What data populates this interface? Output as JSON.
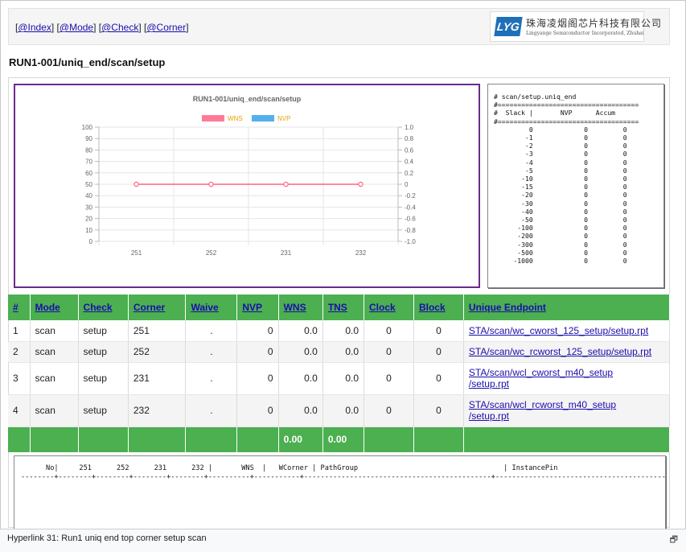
{
  "nav": {
    "links": [
      "@Index",
      "@Mode",
      "@Check",
      "@Corner"
    ]
  },
  "logo": {
    "mark": "LYG",
    "cn_name": "珠海凌烟阁芯片科技有限公司",
    "en_name": "Lingyange Semiconductor Incorporated, Zhuhai"
  },
  "page": {
    "title": "RUN1-001/uniq_end/scan/setup"
  },
  "colors": {
    "wns": "#ff6384",
    "nvp": "#36a2eb",
    "header_green": "#4caf50",
    "chart_border": "#6b2a8a"
  },
  "chart_data": {
    "type": "line",
    "title": "RUN1-001/uniq_end/scan/setup",
    "categories": [
      "251",
      "252",
      "231",
      "232"
    ],
    "series": [
      {
        "name": "WNS",
        "values": [
          0,
          0,
          0,
          0
        ],
        "axis": "right"
      },
      {
        "name": "NVP",
        "values": [
          0,
          0,
          0,
          0
        ],
        "axis": "left"
      }
    ],
    "left_axis": {
      "min": 0,
      "max": 100,
      "ticks": [
        "100",
        "90",
        "80",
        "70",
        "60",
        "50",
        "40",
        "30",
        "20",
        "10",
        "0"
      ]
    },
    "right_axis": {
      "min": -1.0,
      "max": 1.0,
      "ticks": [
        "1.0",
        "0.8",
        "0.6",
        "0.4",
        "0.2",
        "0",
        "-0.2",
        "-0.4",
        "-0.6",
        "-0.8",
        "-1.0"
      ]
    },
    "legend": "top",
    "grid": true
  },
  "slack_report": {
    "title": "# scan/setup.uniq_end",
    "header": "#  Slack |       NVP      Accum",
    "rows": [
      [
        "0",
        "0",
        "0"
      ],
      [
        "-1",
        "0",
        "0"
      ],
      [
        "-2",
        "0",
        "0"
      ],
      [
        "-3",
        "0",
        "0"
      ],
      [
        "-4",
        "0",
        "0"
      ],
      [
        "-5",
        "0",
        "0"
      ],
      [
        "-10",
        "0",
        "0"
      ],
      [
        "-15",
        "0",
        "0"
      ],
      [
        "-20",
        "0",
        "0"
      ],
      [
        "-30",
        "0",
        "0"
      ],
      [
        "-40",
        "0",
        "0"
      ],
      [
        "-50",
        "0",
        "0"
      ],
      [
        "-100",
        "0",
        "0"
      ],
      [
        "-200",
        "0",
        "0"
      ],
      [
        "-300",
        "0",
        "0"
      ],
      [
        "-500",
        "0",
        "0"
      ],
      [
        "-1000",
        "0",
        "0"
      ]
    ]
  },
  "table": {
    "headers": [
      "#",
      "Mode",
      "Check",
      "Corner",
      "Waive",
      "NVP",
      "WNS",
      "TNS",
      "Clock",
      "Block",
      "Unique Endpoint"
    ],
    "rows": [
      {
        "idx": "1",
        "mode": "scan",
        "check": "setup",
        "corner": "251",
        "waive": ".",
        "nvp": "0",
        "wns": "0.0",
        "tns": "0.0",
        "clock": "0",
        "block": "0",
        "endpoint": [
          "STA/scan/wc_cworst_125_setup/setup.rpt"
        ]
      },
      {
        "idx": "2",
        "mode": "scan",
        "check": "setup",
        "corner": "252",
        "waive": ".",
        "nvp": "0",
        "wns": "0.0",
        "tns": "0.0",
        "clock": "0",
        "block": "0",
        "endpoint": [
          "STA/scan/wc_rcworst_125_setup/setup.rpt"
        ]
      },
      {
        "idx": "3",
        "mode": "scan",
        "check": "setup",
        "corner": "231",
        "waive": ".",
        "nvp": "0",
        "wns": "0.0",
        "tns": "0.0",
        "clock": "0",
        "block": "0",
        "endpoint": [
          "STA/scan/wcl_cworst_m40_setup",
          "/setup.rpt"
        ]
      },
      {
        "idx": "4",
        "mode": "scan",
        "check": "setup",
        "corner": "232",
        "waive": ".",
        "nvp": "0",
        "wns": "0.0",
        "tns": "0.0",
        "clock": "0",
        "block": "0",
        "endpoint": [
          "STA/scan/wcl_rcworst_m40_setup",
          "/setup.rpt"
        ]
      }
    ],
    "footer": {
      "wns": "0.00",
      "tns": "0.00"
    }
  },
  "path_report": {
    "header": "      No|     251      252      231      232 |       WNS  |   WCorner | PathGroup                                   | InstancePin",
    "rule": "--------+--------+--------+--------+--------+----------+-----------+---------------------------------------------+------------------------------------------"
  },
  "caption": {
    "text": "Hyperlink 31: Run1 uniq end top corner setup scan",
    "icon": "expand-icon"
  }
}
